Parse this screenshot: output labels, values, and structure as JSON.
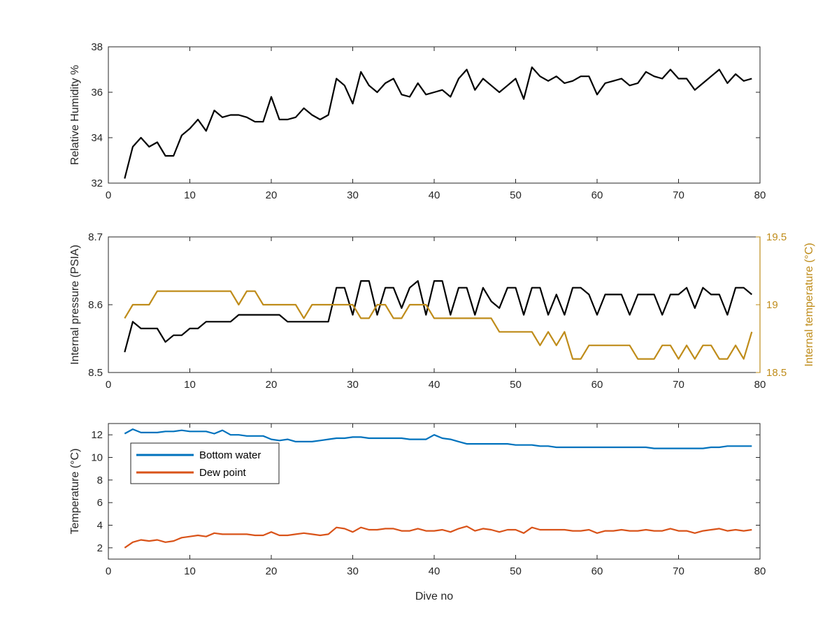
{
  "chart_data": [
    {
      "type": "line",
      "xlabel": "",
      "ylabel": "Relative Humidity %",
      "xlim": [
        0,
        80
      ],
      "ylim": [
        32,
        38
      ],
      "xticks": [
        0,
        10,
        20,
        30,
        40,
        50,
        60,
        70,
        80
      ],
      "yticks": [
        32,
        34,
        36,
        38
      ],
      "grid": false,
      "series": [
        {
          "color": "#000000",
          "x": [
            2,
            3,
            4,
            5,
            6,
            7,
            8,
            9,
            10,
            11,
            12,
            13,
            14,
            15,
            16,
            17,
            18,
            19,
            20,
            21,
            22,
            23,
            24,
            25,
            26,
            27,
            28,
            29,
            30,
            31,
            32,
            33,
            34,
            35,
            36,
            37,
            38,
            39,
            40,
            41,
            42,
            43,
            44,
            45,
            46,
            47,
            48,
            49,
            50,
            51,
            52,
            53,
            54,
            55,
            56,
            57,
            58,
            59,
            60,
            61,
            62,
            63,
            64,
            65,
            66,
            67,
            68,
            69,
            70,
            71,
            72,
            73,
            74,
            75,
            76,
            77,
            78,
            79
          ],
          "values": [
            32.2,
            33.6,
            34.0,
            33.6,
            33.8,
            33.2,
            33.2,
            34.1,
            34.4,
            34.8,
            34.3,
            35.2,
            34.9,
            35.0,
            35.0,
            34.9,
            34.7,
            34.7,
            35.8,
            34.8,
            34.8,
            34.9,
            35.3,
            35.0,
            34.8,
            35.0,
            36.6,
            36.3,
            35.5,
            36.9,
            36.3,
            36.0,
            36.4,
            36.6,
            35.9,
            35.8,
            36.4,
            35.9,
            36.0,
            36.1,
            35.8,
            36.6,
            37.0,
            36.1,
            36.6,
            36.3,
            36.0,
            36.3,
            36.6,
            35.7,
            37.1,
            36.7,
            36.5,
            36.7,
            36.4,
            36.5,
            36.7,
            36.7,
            35.9,
            36.4,
            36.5,
            36.6,
            36.3,
            36.4,
            36.9,
            36.7,
            36.6,
            37.0,
            36.6,
            36.6,
            36.1,
            36.4,
            36.7,
            37.0,
            36.4,
            36.8,
            36.5,
            36.6
          ]
        }
      ]
    },
    {
      "type": "line",
      "xlabel": "",
      "ylabel": "Internal pressure (PSIA)",
      "ylabel_right": "Internal temperature (°C)",
      "xlim": [
        0,
        80
      ],
      "ylim": [
        8.5,
        8.7
      ],
      "ylim_right": [
        18.5,
        19.5
      ],
      "xticks": [
        0,
        10,
        20,
        30,
        40,
        50,
        60,
        70,
        80
      ],
      "yticks": [
        8.5,
        8.6,
        8.7
      ],
      "yticks_right": [
        18.5,
        19,
        19.5
      ],
      "grid": false,
      "series": [
        {
          "axis": "left",
          "color": "#000000",
          "x": [
            2,
            3,
            4,
            5,
            6,
            7,
            8,
            9,
            10,
            11,
            12,
            13,
            14,
            15,
            16,
            17,
            18,
            19,
            20,
            21,
            22,
            23,
            24,
            25,
            26,
            27,
            28,
            29,
            30,
            31,
            32,
            33,
            34,
            35,
            36,
            37,
            38,
            39,
            40,
            41,
            42,
            43,
            44,
            45,
            46,
            47,
            48,
            49,
            50,
            51,
            52,
            53,
            54,
            55,
            56,
            57,
            58,
            59,
            60,
            61,
            62,
            63,
            64,
            65,
            66,
            67,
            68,
            69,
            70,
            71,
            72,
            73,
            74,
            75,
            76,
            77,
            78,
            79
          ],
          "values": [
            8.53,
            8.575,
            8.565,
            8.565,
            8.565,
            8.545,
            8.555,
            8.555,
            8.565,
            8.565,
            8.575,
            8.575,
            8.575,
            8.575,
            8.585,
            8.585,
            8.585,
            8.585,
            8.585,
            8.585,
            8.575,
            8.575,
            8.575,
            8.575,
            8.575,
            8.575,
            8.625,
            8.625,
            8.585,
            8.635,
            8.635,
            8.585,
            8.625,
            8.625,
            8.595,
            8.625,
            8.635,
            8.585,
            8.635,
            8.635,
            8.585,
            8.625,
            8.625,
            8.585,
            8.625,
            8.605,
            8.595,
            8.625,
            8.625,
            8.585,
            8.625,
            8.625,
            8.585,
            8.615,
            8.585,
            8.625,
            8.625,
            8.615,
            8.585,
            8.615,
            8.615,
            8.615,
            8.585,
            8.615,
            8.615,
            8.615,
            8.585,
            8.615,
            8.615,
            8.625,
            8.595,
            8.625,
            8.615,
            8.615,
            8.585,
            8.625,
            8.625,
            8.615
          ]
        },
        {
          "axis": "right",
          "color": "#bf8c1a",
          "x": [
            2,
            3,
            4,
            5,
            6,
            7,
            8,
            9,
            10,
            11,
            12,
            13,
            14,
            15,
            16,
            17,
            18,
            19,
            20,
            21,
            22,
            23,
            24,
            25,
            26,
            27,
            28,
            29,
            30,
            31,
            32,
            33,
            34,
            35,
            36,
            37,
            38,
            39,
            40,
            41,
            42,
            43,
            44,
            45,
            46,
            47,
            48,
            49,
            50,
            51,
            52,
            53,
            54,
            55,
            56,
            57,
            58,
            59,
            60,
            61,
            62,
            63,
            64,
            65,
            66,
            67,
            68,
            69,
            70,
            71,
            72,
            73,
            74,
            75,
            76,
            77,
            78,
            79
          ],
          "values": [
            18.9,
            19.0,
            19.0,
            19.0,
            19.1,
            19.1,
            19.1,
            19.1,
            19.1,
            19.1,
            19.1,
            19.1,
            19.1,
            19.1,
            19.0,
            19.1,
            19.1,
            19.0,
            19.0,
            19.0,
            19.0,
            19.0,
            18.9,
            19.0,
            19.0,
            19.0,
            19.0,
            19.0,
            19.0,
            18.9,
            18.9,
            19.0,
            19.0,
            18.9,
            18.9,
            19.0,
            19.0,
            19.0,
            18.9,
            18.9,
            18.9,
            18.9,
            18.9,
            18.9,
            18.9,
            18.9,
            18.8,
            18.8,
            18.8,
            18.8,
            18.8,
            18.7,
            18.8,
            18.7,
            18.8,
            18.6,
            18.6,
            18.7,
            18.7,
            18.7,
            18.7,
            18.7,
            18.7,
            18.6,
            18.6,
            18.6,
            18.7,
            18.7,
            18.6,
            18.7,
            18.6,
            18.7,
            18.7,
            18.6,
            18.6,
            18.7,
            18.6,
            18.8
          ]
        }
      ]
    },
    {
      "type": "line",
      "xlabel": "Dive no",
      "ylabel": "Temperature (°C)",
      "xlim": [
        0,
        80
      ],
      "ylim": [
        1,
        13
      ],
      "xticks": [
        0,
        10,
        20,
        30,
        40,
        50,
        60,
        70,
        80
      ],
      "yticks": [
        2,
        4,
        6,
        8,
        10,
        12
      ],
      "grid": false,
      "legend": "top-left",
      "series": [
        {
          "name": "Bottom water",
          "color": "#0072bd",
          "x": [
            2,
            3,
            4,
            5,
            6,
            7,
            8,
            9,
            10,
            11,
            12,
            13,
            14,
            15,
            16,
            17,
            18,
            19,
            20,
            21,
            22,
            23,
            24,
            25,
            26,
            27,
            28,
            29,
            30,
            31,
            32,
            33,
            34,
            35,
            36,
            37,
            38,
            39,
            40,
            41,
            42,
            43,
            44,
            45,
            46,
            47,
            48,
            49,
            50,
            51,
            52,
            53,
            54,
            55,
            56,
            57,
            58,
            59,
            60,
            61,
            62,
            63,
            64,
            65,
            66,
            67,
            68,
            69,
            70,
            71,
            72,
            73,
            74,
            75,
            76,
            77,
            78,
            79
          ],
          "values": [
            12.1,
            12.5,
            12.2,
            12.2,
            12.2,
            12.3,
            12.3,
            12.4,
            12.3,
            12.3,
            12.3,
            12.1,
            12.4,
            12.0,
            12.0,
            11.9,
            11.9,
            11.9,
            11.6,
            11.5,
            11.6,
            11.4,
            11.4,
            11.4,
            11.5,
            11.6,
            11.7,
            11.7,
            11.8,
            11.8,
            11.7,
            11.7,
            11.7,
            11.7,
            11.7,
            11.6,
            11.6,
            11.6,
            12.0,
            11.7,
            11.6,
            11.4,
            11.2,
            11.2,
            11.2,
            11.2,
            11.2,
            11.2,
            11.1,
            11.1,
            11.1,
            11.0,
            11.0,
            10.9,
            10.9,
            10.9,
            10.9,
            10.9,
            10.9,
            10.9,
            10.9,
            10.9,
            10.9,
            10.9,
            10.9,
            10.8,
            10.8,
            10.8,
            10.8,
            10.8,
            10.8,
            10.8,
            10.9,
            10.9,
            11.0,
            11.0,
            11.0,
            11.0
          ]
        },
        {
          "name": "Dew point",
          "color": "#d95319",
          "x": [
            2,
            3,
            4,
            5,
            6,
            7,
            8,
            9,
            10,
            11,
            12,
            13,
            14,
            15,
            16,
            17,
            18,
            19,
            20,
            21,
            22,
            23,
            24,
            25,
            26,
            27,
            28,
            29,
            30,
            31,
            32,
            33,
            34,
            35,
            36,
            37,
            38,
            39,
            40,
            41,
            42,
            43,
            44,
            45,
            46,
            47,
            48,
            49,
            50,
            51,
            52,
            53,
            54,
            55,
            56,
            57,
            58,
            59,
            60,
            61,
            62,
            63,
            64,
            65,
            66,
            67,
            68,
            69,
            70,
            71,
            72,
            73,
            74,
            75,
            76,
            77,
            78,
            79
          ],
          "values": [
            2.0,
            2.5,
            2.7,
            2.6,
            2.7,
            2.5,
            2.6,
            2.9,
            3.0,
            3.1,
            3.0,
            3.3,
            3.2,
            3.2,
            3.2,
            3.2,
            3.1,
            3.1,
            3.4,
            3.1,
            3.1,
            3.2,
            3.3,
            3.2,
            3.1,
            3.2,
            3.8,
            3.7,
            3.4,
            3.8,
            3.6,
            3.6,
            3.7,
            3.7,
            3.5,
            3.5,
            3.7,
            3.5,
            3.5,
            3.6,
            3.4,
            3.7,
            3.9,
            3.5,
            3.7,
            3.6,
            3.4,
            3.6,
            3.6,
            3.3,
            3.8,
            3.6,
            3.6,
            3.6,
            3.6,
            3.5,
            3.5,
            3.6,
            3.3,
            3.5,
            3.5,
            3.6,
            3.5,
            3.5,
            3.6,
            3.5,
            3.5,
            3.7,
            3.5,
            3.5,
            3.3,
            3.5,
            3.6,
            3.7,
            3.5,
            3.6,
            3.5,
            3.6
          ]
        }
      ]
    }
  ]
}
